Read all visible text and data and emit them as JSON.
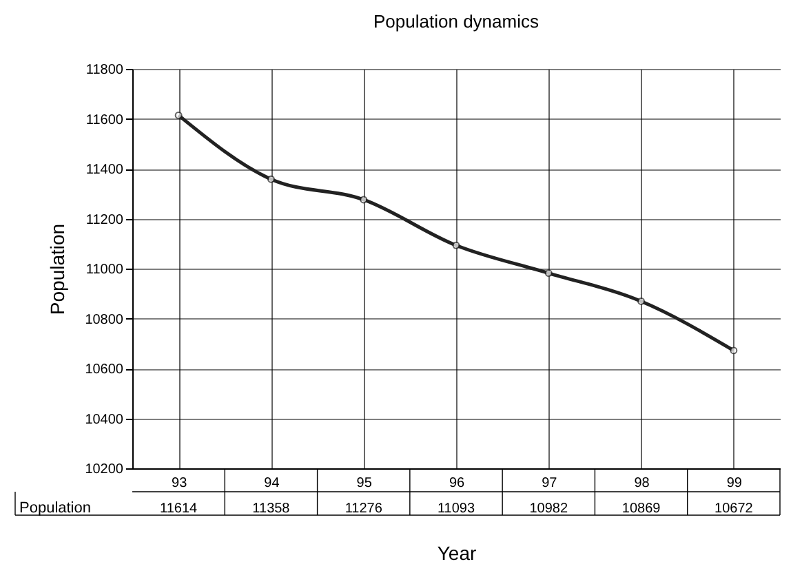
{
  "chart_data": {
    "type": "line",
    "title": "Population dynamics",
    "xlabel": "Year",
    "ylabel": "Population",
    "categories": [
      "93",
      "94",
      "95",
      "96",
      "97",
      "98",
      "99"
    ],
    "series": [
      {
        "name": "Population",
        "color": "#222222",
        "values": [
          11614,
          11358,
          11276,
          11093,
          10982,
          10869,
          10672
        ]
      }
    ],
    "ylim": [
      10200,
      11800
    ],
    "yticks": [
      10200,
      10400,
      10600,
      10800,
      11000,
      11200,
      11400,
      11600,
      11800
    ],
    "grid": true,
    "marker": "circle",
    "line_style": "solid",
    "data_labels": true,
    "legend": false
  }
}
